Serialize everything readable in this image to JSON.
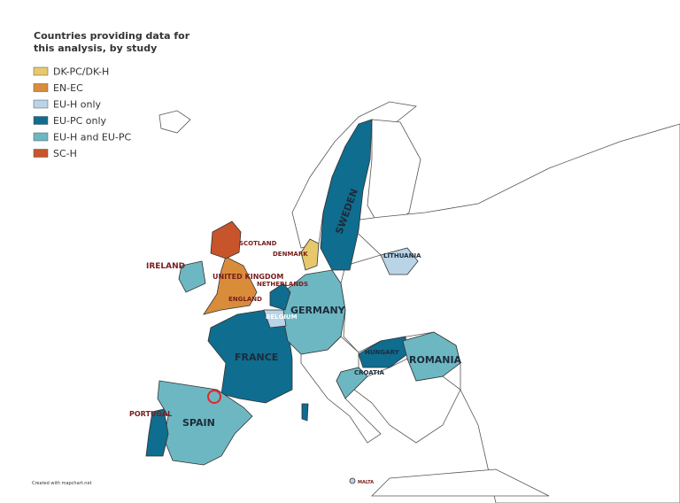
{
  "header": {
    "title": [
      "Countries providing data for",
      "this analysis, by study"
    ]
  },
  "legend": {
    "items": [
      {
        "label": "DK-PC/DK-H",
        "color": "#e8c86c"
      },
      {
        "label": "EN-EC",
        "color": "#d98d3b"
      },
      {
        "label": "EU-H only",
        "color": "#b9d4e7"
      },
      {
        "label": "EU-PC only",
        "color": "#0f6d8f"
      },
      {
        "label": "EU-H and EU-PC",
        "color": "#6db7c2"
      },
      {
        "label": "SC-H",
        "color": "#c8542b"
      }
    ]
  },
  "labels": [
    "SWEDEN",
    "SCOTLAND",
    "DENMARK",
    "IRELAND",
    "UNITED KINGDOM",
    "NETHERLANDS",
    "ENGLAND",
    "BELGIUM",
    "GERMANY",
    "LITHUANIA",
    "FRANCE",
    "HUNGARY",
    "ROMANIA",
    "CROATIA",
    "PORTUGAL",
    "SPAIN",
    "MALTA"
  ],
  "credit": "Created with mapchart.net"
}
